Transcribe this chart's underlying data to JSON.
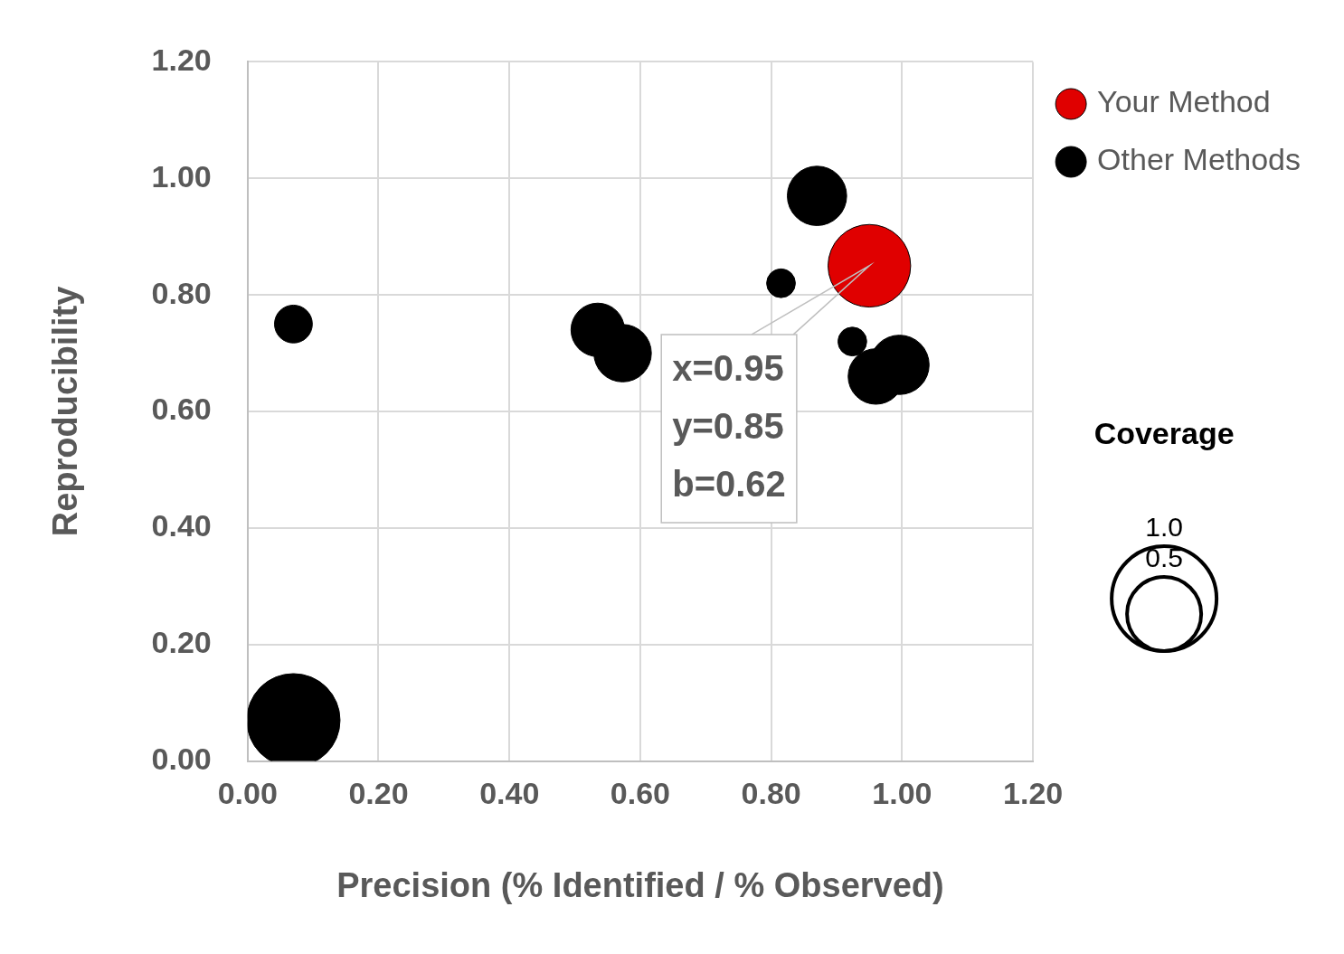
{
  "chart_data": {
    "type": "bubble",
    "xlabel": "Precision (% Identified / % Observed)",
    "ylabel": "Reproducibility",
    "xlim": [
      0,
      1.2
    ],
    "ylim": [
      0,
      1.2
    ],
    "xticks": [
      {
        "value": 0,
        "label": "0.00"
      },
      {
        "value": 0.2,
        "label": "0.20"
      },
      {
        "value": 0.4,
        "label": "0.40"
      },
      {
        "value": 0.6,
        "label": "0.60"
      },
      {
        "value": 0.8,
        "label": "0.80"
      },
      {
        "value": 1,
        "label": "1.00"
      },
      {
        "value": 1.2,
        "label": "1.20"
      }
    ],
    "yticks": [
      {
        "value": 0,
        "label": "0.00"
      },
      {
        "value": 0.2,
        "label": "0.20"
      },
      {
        "value": 0.4,
        "label": "0.40"
      },
      {
        "value": 0.6,
        "label": "0.60"
      },
      {
        "value": 0.8,
        "label": "0.80"
      },
      {
        "value": 1,
        "label": "1.00"
      },
      {
        "value": 1.2,
        "label": "1.20"
      }
    ],
    "grid": true,
    "legend": "top right",
    "legend_title": "Coverage",
    "size_legend": [
      {
        "value": 1,
        "label": "1.0"
      },
      {
        "value": 0.5,
        "label": "0.5"
      }
    ],
    "series": [
      {
        "name": "Your Method",
        "color": "#e00000",
        "x": [
          0.95
        ],
        "values": [
          0.85
        ],
        "sizes": [
          0.62
        ]
      },
      {
        "name": "Other Methods",
        "color": "#000000",
        "x": [
          0.87,
          0.815,
          0.924,
          0.996,
          0.96,
          0.535,
          0.573,
          0.07,
          0.07
        ],
        "values": [
          0.97,
          0.82,
          0.72,
          0.68,
          0.66,
          0.74,
          0.7,
          0.75,
          0.07
        ],
        "sizes": [
          0.32,
          0.075,
          0.075,
          0.32,
          0.28,
          0.26,
          0.3,
          0.13,
          0.79
        ]
      }
    ],
    "annotations": [
      "x=0.95\ny=0.85\nb=0.62"
    ]
  }
}
